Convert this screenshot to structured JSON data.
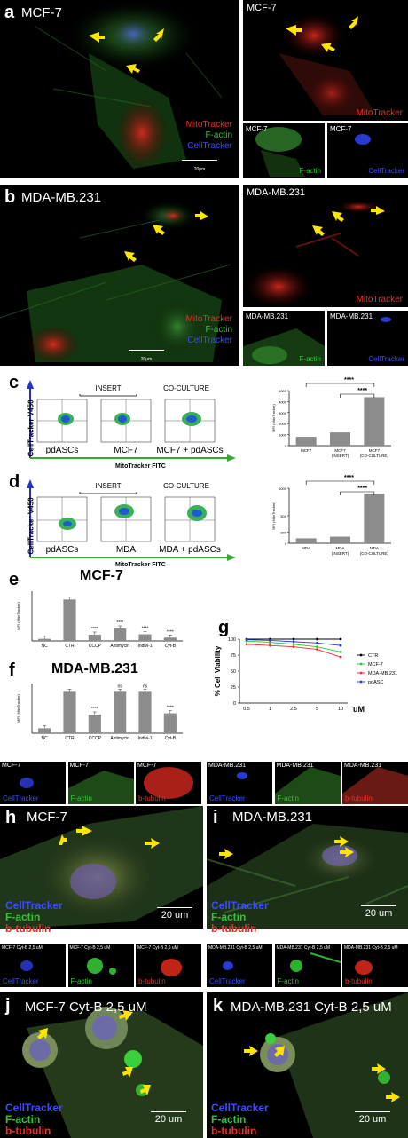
{
  "panel_letters": {
    "a": "a",
    "b": "b",
    "c": "c",
    "d": "d",
    "e": "e",
    "f": "f",
    "g": "g",
    "h": "h",
    "i": "i",
    "j": "j",
    "k": "k"
  },
  "panel_a": {
    "main_title": "MCF-7",
    "main_legend": [
      "MitoTracker",
      "F-actin",
      "CellTracker"
    ],
    "scale": "20μm",
    "right_top_title": "MCF-7",
    "right_top_legend": "MitoTracker",
    "sub1_title": "MCF-7",
    "sub1_legend": "F-actin",
    "sub2_title": "MCF-7",
    "sub2_legend": "CellTracker"
  },
  "panel_b": {
    "main_title": "MDA-MB.231",
    "main_legend": [
      "MitoTracker",
      "F-actin",
      "CellTracker"
    ],
    "scale": "20μm",
    "right_top_title": "MDA-MB.231",
    "right_top_legend": "MitoTracker",
    "sub1_title": "MDA-MB.231",
    "sub1_legend": "F-actin",
    "sub2_title": "MDA-MB.231",
    "sub2_legend": "CellTracker"
  },
  "panel_c": {
    "ylabel": "CellTracker V450",
    "xlabel": "MitoTracker FITC",
    "insert": "INSERT",
    "coculture": "CO-CULTURE",
    "plots": [
      "pdASCs",
      "MCF7",
      "MCF7 + pdASCs"
    ]
  },
  "panel_d": {
    "ylabel": "CellTracker V450",
    "xlabel": "MitoTracker FITC",
    "insert": "INSERT",
    "coculture": "CO-CULTURE",
    "plots": [
      "pdASCs",
      "MDA",
      "MDA + pdASCs"
    ]
  },
  "panel_e_title": "MCF-7",
  "panel_f_title": "MDA-MB.231",
  "panel_g_legend": {
    "series": [
      "CTR",
      "MCF-7",
      "MDA-MB.231",
      "pdASC"
    ]
  },
  "row_h_strips": {
    "left": [
      {
        "title": "MCF-7",
        "legend": "CellTracker"
      },
      {
        "title": "MCF-7",
        "legend": "F-actin"
      },
      {
        "title": "MCF-7",
        "legend": "b-tubulin"
      }
    ],
    "right": [
      {
        "title": "MDA-MB.231",
        "legend": "CellTracker"
      },
      {
        "title": "MDA-MB.231",
        "legend": "F-actin"
      },
      {
        "title": "MDA-MB.231",
        "legend": "b-tubulin"
      }
    ]
  },
  "panel_h": {
    "title": "MCF-7",
    "legend": [
      "CellTracker",
      "F-actin",
      "b-tubulin"
    ],
    "scale": "20 um"
  },
  "panel_i": {
    "title": "MDA-MB.231",
    "legend": [
      "CellTracker",
      "F-actin",
      "b-tubulin"
    ],
    "scale": "20 um"
  },
  "row_j_strips": {
    "left": [
      {
        "title": "MCF-7 Cyt-B 2,5 uM",
        "legend": "CellTracker"
      },
      {
        "title": "MCF-7 Cyt-B 2,5 uM",
        "legend": "F-actin"
      },
      {
        "title": "MCF-7 Cyt-B 2,5 uM",
        "legend": "b-tubulin"
      }
    ],
    "right": [
      {
        "title": "MDA-MB.231 Cyt-B 2,5 uM",
        "legend": "CellTracker"
      },
      {
        "title": "MDA-MB.231 Cyt-B 2,5 uM",
        "legend": "F-actin"
      },
      {
        "title": "MDA-MB.231 Cyt-B 2,5 uM",
        "legend": "b-tubulin"
      }
    ]
  },
  "panel_j": {
    "title": "MCF-7 Cyt-B 2,5 uM",
    "legend": [
      "CellTracker",
      "F-actin",
      "b-tubulin"
    ],
    "scale": "20 um"
  },
  "panel_k": {
    "title": "MDA-MB.231 Cyt-B 2,5 uM",
    "legend": [
      "CellTracker",
      "F-actin",
      "b-tubulin"
    ],
    "scale": "20 um"
  },
  "colors": {
    "mito_red": "#e6302a",
    "actin_green": "#35c135",
    "tracker_blue": "#3a4cff",
    "arrow_yellow": "#ffe400",
    "bar_grey": "#8c8c8c"
  },
  "chart_data": [
    {
      "id": "c_bar",
      "type": "bar",
      "categories": [
        "MCF7",
        "MCF7\n(INSERT)",
        "MCF7\n(CO-CULTURE)"
      ],
      "values": [
        800,
        1200,
        4400
      ],
      "ylabel": "MFI (MitoTracker)",
      "ylim": [
        0,
        5000
      ],
      "yticks": [
        "0",
        "1000",
        "2000",
        "3000",
        "4000",
        "5000"
      ],
      "significance": [
        "****",
        "****"
      ]
    },
    {
      "id": "d_bar",
      "type": "bar",
      "categories": [
        "MDA",
        "MDA\n(INSERT)",
        "MDA\n(CO-CULTURE)"
      ],
      "values": [
        90,
        120,
        900
      ],
      "ylabel": "MFI (MitoTracker)",
      "ylim": [
        0,
        1000
      ],
      "yticks": [
        "0",
        "200",
        "500",
        "1000"
      ],
      "significance": [
        "****",
        "****"
      ]
    },
    {
      "id": "e_bar",
      "type": "bar",
      "categories": [
        "NC",
        "CTR",
        "CCCP",
        "Antimycin",
        "Indivi-1",
        "Cyt-B"
      ],
      "values": [
        5,
        100,
        15,
        30,
        16,
        8
      ],
      "ylabel": "MFI (MitoTracker)",
      "ylim": [
        0,
        120
      ],
      "significance": [
        "",
        "",
        "****",
        "****",
        "****",
        "****"
      ]
    },
    {
      "id": "f_bar",
      "type": "bar",
      "categories": [
        "NC",
        "CTR",
        "CCCP",
        "Antimycin",
        "Indivi-1",
        "Cyt-B"
      ],
      "values": [
        12,
        100,
        45,
        100,
        100,
        48
      ],
      "ylabel": "MFI (MitoTracker)",
      "ylim": [
        0,
        120
      ],
      "significance": [
        "",
        "",
        "****",
        "ns",
        "ns",
        "****"
      ]
    },
    {
      "id": "g_line",
      "type": "line",
      "x": [
        "0.5",
        "1",
        "2.5",
        "5",
        "10"
      ],
      "xlabel": "uM",
      "ylabel": "% Cell Viability",
      "ylim": [
        0,
        100
      ],
      "yticks": [
        "0",
        "25",
        "50",
        "75",
        "100"
      ],
      "series": [
        {
          "name": "CTR",
          "color": "#000000",
          "values": [
            100,
            100,
            100,
            100,
            100
          ]
        },
        {
          "name": "MCF-7",
          "color": "#35c135",
          "values": [
            97,
            95,
            92,
            88,
            80
          ]
        },
        {
          "name": "MDA-MB.231",
          "color": "#e6302a",
          "values": [
            92,
            90,
            88,
            84,
            72
          ]
        },
        {
          "name": "pdASC",
          "color": "#2b3bd8",
          "values": [
            99,
            98,
            96,
            94,
            90
          ]
        }
      ]
    }
  ]
}
